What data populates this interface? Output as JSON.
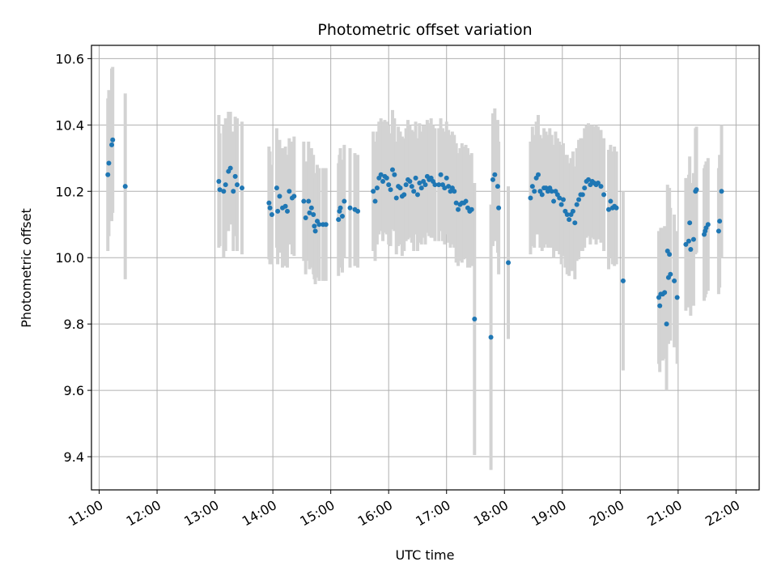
{
  "chart_data": {
    "type": "scatter",
    "title": "Photometric offset variation",
    "xlabel": "UTC time",
    "ylabel": "Photometric offset",
    "xlim": [
      "10:52",
      "22:24"
    ],
    "ylim": [
      9.3,
      10.64
    ],
    "grid": true,
    "x_ticks": [
      "11:00",
      "12:00",
      "13:00",
      "14:00",
      "15:00",
      "16:00",
      "17:00",
      "18:00",
      "19:00",
      "20:00",
      "21:00",
      "22:00"
    ],
    "y_ticks": [
      "9.4",
      "9.6",
      "9.8",
      "10.0",
      "10.2",
      "10.4",
      "10.6"
    ],
    "colors": {
      "points": "#1f77b4",
      "error_bars": "#d3d3d3",
      "grid": "#b0b0b0"
    },
    "points": [
      {
        "t": "11:09",
        "y": 10.25,
        "err": 0.23
      },
      {
        "t": "11:10",
        "y": 10.285,
        "err": 0.22
      },
      {
        "t": "11:13",
        "y": 10.34,
        "err": 0.23
      },
      {
        "t": "11:14",
        "y": 10.355,
        "err": 0.22
      },
      {
        "t": "11:27",
        "y": 10.215,
        "err": 0.28
      },
      {
        "t": "13:04",
        "y": 10.23,
        "err": 0.2
      },
      {
        "t": "13:05",
        "y": 10.205,
        "err": 0.17
      },
      {
        "t": "13:09",
        "y": 10.2,
        "err": 0.2
      },
      {
        "t": "13:11",
        "y": 10.22,
        "err": 0.2
      },
      {
        "t": "13:14",
        "y": 10.26,
        "err": 0.18
      },
      {
        "t": "13:16",
        "y": 10.27,
        "err": 0.17
      },
      {
        "t": "13:19",
        "y": 10.2,
        "err": 0.18
      },
      {
        "t": "13:21",
        "y": 10.245,
        "err": 0.18
      },
      {
        "t": "13:23",
        "y": 10.22,
        "err": 0.2
      },
      {
        "t": "13:28",
        "y": 10.21,
        "err": 0.2
      },
      {
        "t": "13:56",
        "y": 10.165,
        "err": 0.17
      },
      {
        "t": "13:57",
        "y": 10.15,
        "err": 0.17
      },
      {
        "t": "13:59",
        "y": 10.13,
        "err": 0.15
      },
      {
        "t": "14:04",
        "y": 10.21,
        "err": 0.18
      },
      {
        "t": "14:05",
        "y": 10.14,
        "err": 0.16
      },
      {
        "t": "14:07",
        "y": 10.185,
        "err": 0.17
      },
      {
        "t": "14:10",
        "y": 10.15,
        "err": 0.18
      },
      {
        "t": "14:13",
        "y": 10.155,
        "err": 0.18
      },
      {
        "t": "14:15",
        "y": 10.14,
        "err": 0.17
      },
      {
        "t": "14:17",
        "y": 10.2,
        "err": 0.16
      },
      {
        "t": "14:20",
        "y": 10.18,
        "err": 0.17
      },
      {
        "t": "14:22",
        "y": 10.185,
        "err": 0.18
      },
      {
        "t": "14:32",
        "y": 10.17,
        "err": 0.18
      },
      {
        "t": "14:34",
        "y": 10.12,
        "err": 0.17
      },
      {
        "t": "14:37",
        "y": 10.17,
        "err": 0.18
      },
      {
        "t": "14:38",
        "y": 10.135,
        "err": 0.17
      },
      {
        "t": "14:40",
        "y": 10.15,
        "err": 0.18
      },
      {
        "t": "14:42",
        "y": 10.13,
        "err": 0.18
      },
      {
        "t": "14:43",
        "y": 10.095,
        "err": 0.16
      },
      {
        "t": "14:44",
        "y": 10.08,
        "err": 0.16
      },
      {
        "t": "14:46",
        "y": 10.11,
        "err": 0.17
      },
      {
        "t": "14:48",
        "y": 10.1,
        "err": 0.17
      },
      {
        "t": "14:52",
        "y": 10.1,
        "err": 0.17
      },
      {
        "t": "14:55",
        "y": 10.1,
        "err": 0.17
      },
      {
        "t": "15:08",
        "y": 10.115,
        "err": 0.17
      },
      {
        "t": "15:09",
        "y": 10.14,
        "err": 0.17
      },
      {
        "t": "15:10",
        "y": 10.15,
        "err": 0.18
      },
      {
        "t": "15:12",
        "y": 10.125,
        "err": 0.17
      },
      {
        "t": "15:14",
        "y": 10.17,
        "err": 0.17
      },
      {
        "t": "15:20",
        "y": 10.15,
        "err": 0.18
      },
      {
        "t": "15:25",
        "y": 10.145,
        "err": 0.17
      },
      {
        "t": "15:28",
        "y": 10.14,
        "err": 0.17
      },
      {
        "t": "15:44",
        "y": 10.2,
        "err": 0.18
      },
      {
        "t": "15:46",
        "y": 10.17,
        "err": 0.18
      },
      {
        "t": "15:48",
        "y": 10.21,
        "err": 0.17
      },
      {
        "t": "15:50",
        "y": 10.24,
        "err": 0.17
      },
      {
        "t": "15:52",
        "y": 10.25,
        "err": 0.17
      },
      {
        "t": "15:54",
        "y": 10.23,
        "err": 0.18
      },
      {
        "t": "15:56",
        "y": 10.245,
        "err": 0.17
      },
      {
        "t": "15:58",
        "y": 10.24,
        "err": 0.17
      },
      {
        "t": "16:00",
        "y": 10.22,
        "err": 0.18
      },
      {
        "t": "16:02",
        "y": 10.205,
        "err": 0.17
      },
      {
        "t": "16:04",
        "y": 10.265,
        "err": 0.18
      },
      {
        "t": "16:06",
        "y": 10.25,
        "err": 0.17
      },
      {
        "t": "16:08",
        "y": 10.18,
        "err": 0.17
      },
      {
        "t": "16:10",
        "y": 10.215,
        "err": 0.18
      },
      {
        "t": "16:12",
        "y": 10.21,
        "err": 0.17
      },
      {
        "t": "16:14",
        "y": 10.185,
        "err": 0.18
      },
      {
        "t": "16:16",
        "y": 10.19,
        "err": 0.17
      },
      {
        "t": "16:18",
        "y": 10.22,
        "err": 0.17
      },
      {
        "t": "16:20",
        "y": 10.235,
        "err": 0.18
      },
      {
        "t": "16:22",
        "y": 10.23,
        "err": 0.17
      },
      {
        "t": "16:24",
        "y": 10.215,
        "err": 0.17
      },
      {
        "t": "16:26",
        "y": 10.2,
        "err": 0.18
      },
      {
        "t": "16:28",
        "y": 10.24,
        "err": 0.17
      },
      {
        "t": "16:30",
        "y": 10.19,
        "err": 0.17
      },
      {
        "t": "16:32",
        "y": 10.225,
        "err": 0.18
      },
      {
        "t": "16:34",
        "y": 10.21,
        "err": 0.17
      },
      {
        "t": "16:36",
        "y": 10.23,
        "err": 0.17
      },
      {
        "t": "16:38",
        "y": 10.22,
        "err": 0.18
      },
      {
        "t": "16:40",
        "y": 10.245,
        "err": 0.17
      },
      {
        "t": "16:42",
        "y": 10.235,
        "err": 0.17
      },
      {
        "t": "16:44",
        "y": 10.24,
        "err": 0.18
      },
      {
        "t": "16:46",
        "y": 10.23,
        "err": 0.17
      },
      {
        "t": "16:48",
        "y": 10.22,
        "err": 0.17
      },
      {
        "t": "16:52",
        "y": 10.22,
        "err": 0.17
      },
      {
        "t": "16:54",
        "y": 10.25,
        "err": 0.17
      },
      {
        "t": "16:56",
        "y": 10.22,
        "err": 0.17
      },
      {
        "t": "16:58",
        "y": 10.21,
        "err": 0.17
      },
      {
        "t": "17:00",
        "y": 10.24,
        "err": 0.17
      },
      {
        "t": "17:02",
        "y": 10.215,
        "err": 0.17
      },
      {
        "t": "17:04",
        "y": 10.2,
        "err": 0.17
      },
      {
        "t": "17:06",
        "y": 10.21,
        "err": 0.17
      },
      {
        "t": "17:08",
        "y": 10.2,
        "err": 0.17
      },
      {
        "t": "17:10",
        "y": 10.165,
        "err": 0.18
      },
      {
        "t": "17:12",
        "y": 10.145,
        "err": 0.17
      },
      {
        "t": "17:14",
        "y": 10.16,
        "err": 0.17
      },
      {
        "t": "17:16",
        "y": 10.165,
        "err": 0.18
      },
      {
        "t": "17:18",
        "y": 10.165,
        "err": 0.17
      },
      {
        "t": "17:20",
        "y": 10.17,
        "err": 0.17
      },
      {
        "t": "17:22",
        "y": 10.15,
        "err": 0.18
      },
      {
        "t": "17:24",
        "y": 10.14,
        "err": 0.17
      },
      {
        "t": "17:26",
        "y": 10.145,
        "err": 0.17
      },
      {
        "t": "17:29",
        "y": 9.815,
        "err": 0.41
      },
      {
        "t": "17:46",
        "y": 9.76,
        "err": 0.4
      },
      {
        "t": "17:48",
        "y": 10.235,
        "err": 0.2
      },
      {
        "t": "17:50",
        "y": 10.25,
        "err": 0.2
      },
      {
        "t": "17:53",
        "y": 10.215,
        "err": 0.2
      },
      {
        "t": "17:54",
        "y": 10.15,
        "err": 0.2
      },
      {
        "t": "18:04",
        "y": 9.985,
        "err": 0.23
      },
      {
        "t": "18:27",
        "y": 10.18,
        "err": 0.17
      },
      {
        "t": "18:29",
        "y": 10.215,
        "err": 0.18
      },
      {
        "t": "18:31",
        "y": 10.2,
        "err": 0.17
      },
      {
        "t": "18:33",
        "y": 10.24,
        "err": 0.17
      },
      {
        "t": "18:35",
        "y": 10.25,
        "err": 0.18
      },
      {
        "t": "18:37",
        "y": 10.2,
        "err": 0.17
      },
      {
        "t": "18:39",
        "y": 10.19,
        "err": 0.17
      },
      {
        "t": "18:41",
        "y": 10.21,
        "err": 0.18
      },
      {
        "t": "18:43",
        "y": 10.21,
        "err": 0.17
      },
      {
        "t": "18:45",
        "y": 10.2,
        "err": 0.17
      },
      {
        "t": "18:47",
        "y": 10.21,
        "err": 0.18
      },
      {
        "t": "18:49",
        "y": 10.2,
        "err": 0.17
      },
      {
        "t": "18:51",
        "y": 10.17,
        "err": 0.17
      },
      {
        "t": "18:53",
        "y": 10.2,
        "err": 0.18
      },
      {
        "t": "18:55",
        "y": 10.19,
        "err": 0.17
      },
      {
        "t": "18:57",
        "y": 10.18,
        "err": 0.17
      },
      {
        "t": "18:59",
        "y": 10.16,
        "err": 0.18
      },
      {
        "t": "19:01",
        "y": 10.175,
        "err": 0.17
      },
      {
        "t": "19:03",
        "y": 10.14,
        "err": 0.17
      },
      {
        "t": "19:05",
        "y": 10.13,
        "err": 0.18
      },
      {
        "t": "19:07",
        "y": 10.115,
        "err": 0.17
      },
      {
        "t": "19:09",
        "y": 10.13,
        "err": 0.17
      },
      {
        "t": "19:11",
        "y": 10.14,
        "err": 0.18
      },
      {
        "t": "19:13",
        "y": 10.105,
        "err": 0.17
      },
      {
        "t": "19:15",
        "y": 10.16,
        "err": 0.17
      },
      {
        "t": "19:17",
        "y": 10.175,
        "err": 0.18
      },
      {
        "t": "19:19",
        "y": 10.19,
        "err": 0.17
      },
      {
        "t": "19:21",
        "y": 10.19,
        "err": 0.17
      },
      {
        "t": "19:23",
        "y": 10.21,
        "err": 0.18
      },
      {
        "t": "19:25",
        "y": 10.23,
        "err": 0.17
      },
      {
        "t": "19:27",
        "y": 10.235,
        "err": 0.17
      },
      {
        "t": "19:29",
        "y": 10.22,
        "err": 0.18
      },
      {
        "t": "19:31",
        "y": 10.23,
        "err": 0.17
      },
      {
        "t": "19:33",
        "y": 10.225,
        "err": 0.17
      },
      {
        "t": "19:35",
        "y": 10.22,
        "err": 0.18
      },
      {
        "t": "19:37",
        "y": 10.225,
        "err": 0.17
      },
      {
        "t": "19:40",
        "y": 10.215,
        "err": 0.17
      },
      {
        "t": "19:43",
        "y": 10.19,
        "err": 0.17
      },
      {
        "t": "19:48",
        "y": 10.145,
        "err": 0.18
      },
      {
        "t": "19:50",
        "y": 10.17,
        "err": 0.17
      },
      {
        "t": "19:52",
        "y": 10.15,
        "err": 0.17
      },
      {
        "t": "19:54",
        "y": 10.155,
        "err": 0.18
      },
      {
        "t": "19:56",
        "y": 10.15,
        "err": 0.17
      },
      {
        "t": "20:03",
        "y": 9.93,
        "err": 0.27
      },
      {
        "t": "20:40",
        "y": 9.88,
        "err": 0.2
      },
      {
        "t": "20:41",
        "y": 9.855,
        "err": 0.2
      },
      {
        "t": "20:42",
        "y": 9.89,
        "err": 0.2
      },
      {
        "t": "20:44",
        "y": 9.89,
        "err": 0.2
      },
      {
        "t": "20:46",
        "y": 9.895,
        "err": 0.2
      },
      {
        "t": "20:48",
        "y": 9.8,
        "err": 0.2
      },
      {
        "t": "20:49",
        "y": 10.02,
        "err": 0.2
      },
      {
        "t": "20:50",
        "y": 9.94,
        "err": 0.2
      },
      {
        "t": "20:51",
        "y": 10.01,
        "err": 0.2
      },
      {
        "t": "20:52",
        "y": 9.95,
        "err": 0.2
      },
      {
        "t": "20:56",
        "y": 9.93,
        "err": 0.2
      },
      {
        "t": "20:59",
        "y": 9.88,
        "err": 0.2
      },
      {
        "t": "21:08",
        "y": 10.04,
        "err": 0.2
      },
      {
        "t": "21:11",
        "y": 10.05,
        "err": 0.2
      },
      {
        "t": "21:12",
        "y": 10.105,
        "err": 0.2
      },
      {
        "t": "21:13",
        "y": 10.025,
        "err": 0.2
      },
      {
        "t": "21:16",
        "y": 10.055,
        "err": 0.2
      },
      {
        "t": "21:18",
        "y": 10.2,
        "err": 0.19
      },
      {
        "t": "21:19",
        "y": 10.205,
        "err": 0.19
      },
      {
        "t": "21:27",
        "y": 10.07,
        "err": 0.2
      },
      {
        "t": "21:28",
        "y": 10.08,
        "err": 0.2
      },
      {
        "t": "21:29",
        "y": 10.09,
        "err": 0.2
      },
      {
        "t": "21:31",
        "y": 10.1,
        "err": 0.2
      },
      {
        "t": "21:42",
        "y": 10.08,
        "err": 0.19
      },
      {
        "t": "21:43",
        "y": 10.11,
        "err": 0.2
      },
      {
        "t": "21:45",
        "y": 10.2,
        "err": 0.2
      }
    ]
  }
}
